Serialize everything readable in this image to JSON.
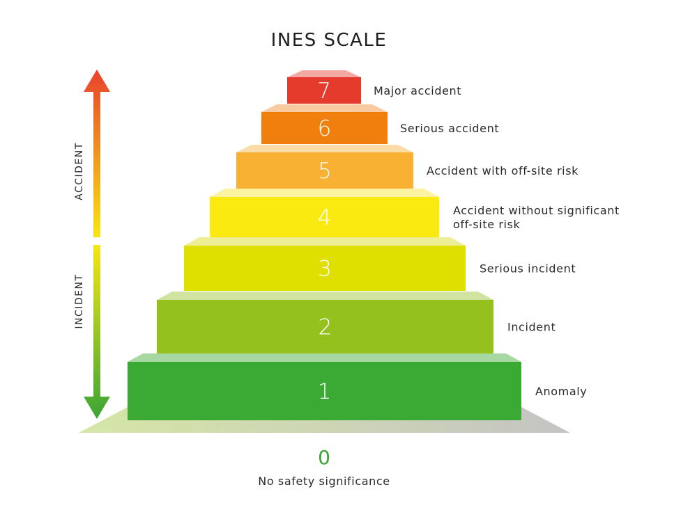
{
  "title": "INES SCALE",
  "axis": {
    "accident_label": "ACCIDENT",
    "incident_label": "INCIDENT",
    "colors": {
      "top": "#e8432c",
      "middle": "#f7e514",
      "bottom": "#3aa535"
    }
  },
  "levels": [
    {
      "level": "7",
      "label_lines": [
        "Major accident"
      ],
      "color": "#e53b2c",
      "top_color": "#f4a8a2"
    },
    {
      "level": "6",
      "label_lines": [
        "Serious accident"
      ],
      "color": "#f07f0d",
      "top_color": "#f8caa0"
    },
    {
      "level": "5",
      "label_lines": [
        "Accident with off-site risk"
      ],
      "color": "#f8b133",
      "top_color": "#fbdca6"
    },
    {
      "level": "4",
      "label_lines": [
        "Accident without significant",
        "off-site risk"
      ],
      "color": "#fbea10",
      "top_color": "#fbf3a0"
    },
    {
      "level": "3",
      "label_lines": [
        "Serious incident"
      ],
      "color": "#dfdf00",
      "top_color": "#eeee96"
    },
    {
      "level": "2",
      "label_lines": [
        "Incident"
      ],
      "color": "#95c11f",
      "top_color": "#d0e3a0"
    },
    {
      "level": "1",
      "label_lines": [
        "Anomaly"
      ],
      "color": "#3aaa35",
      "top_color": "#a8d8a2"
    }
  ],
  "base": {
    "level": "0",
    "label": "No safety significance",
    "color_left": "#d6e6a6",
    "color_right": "#c4c4c4",
    "number_color": "#3aa535"
  }
}
